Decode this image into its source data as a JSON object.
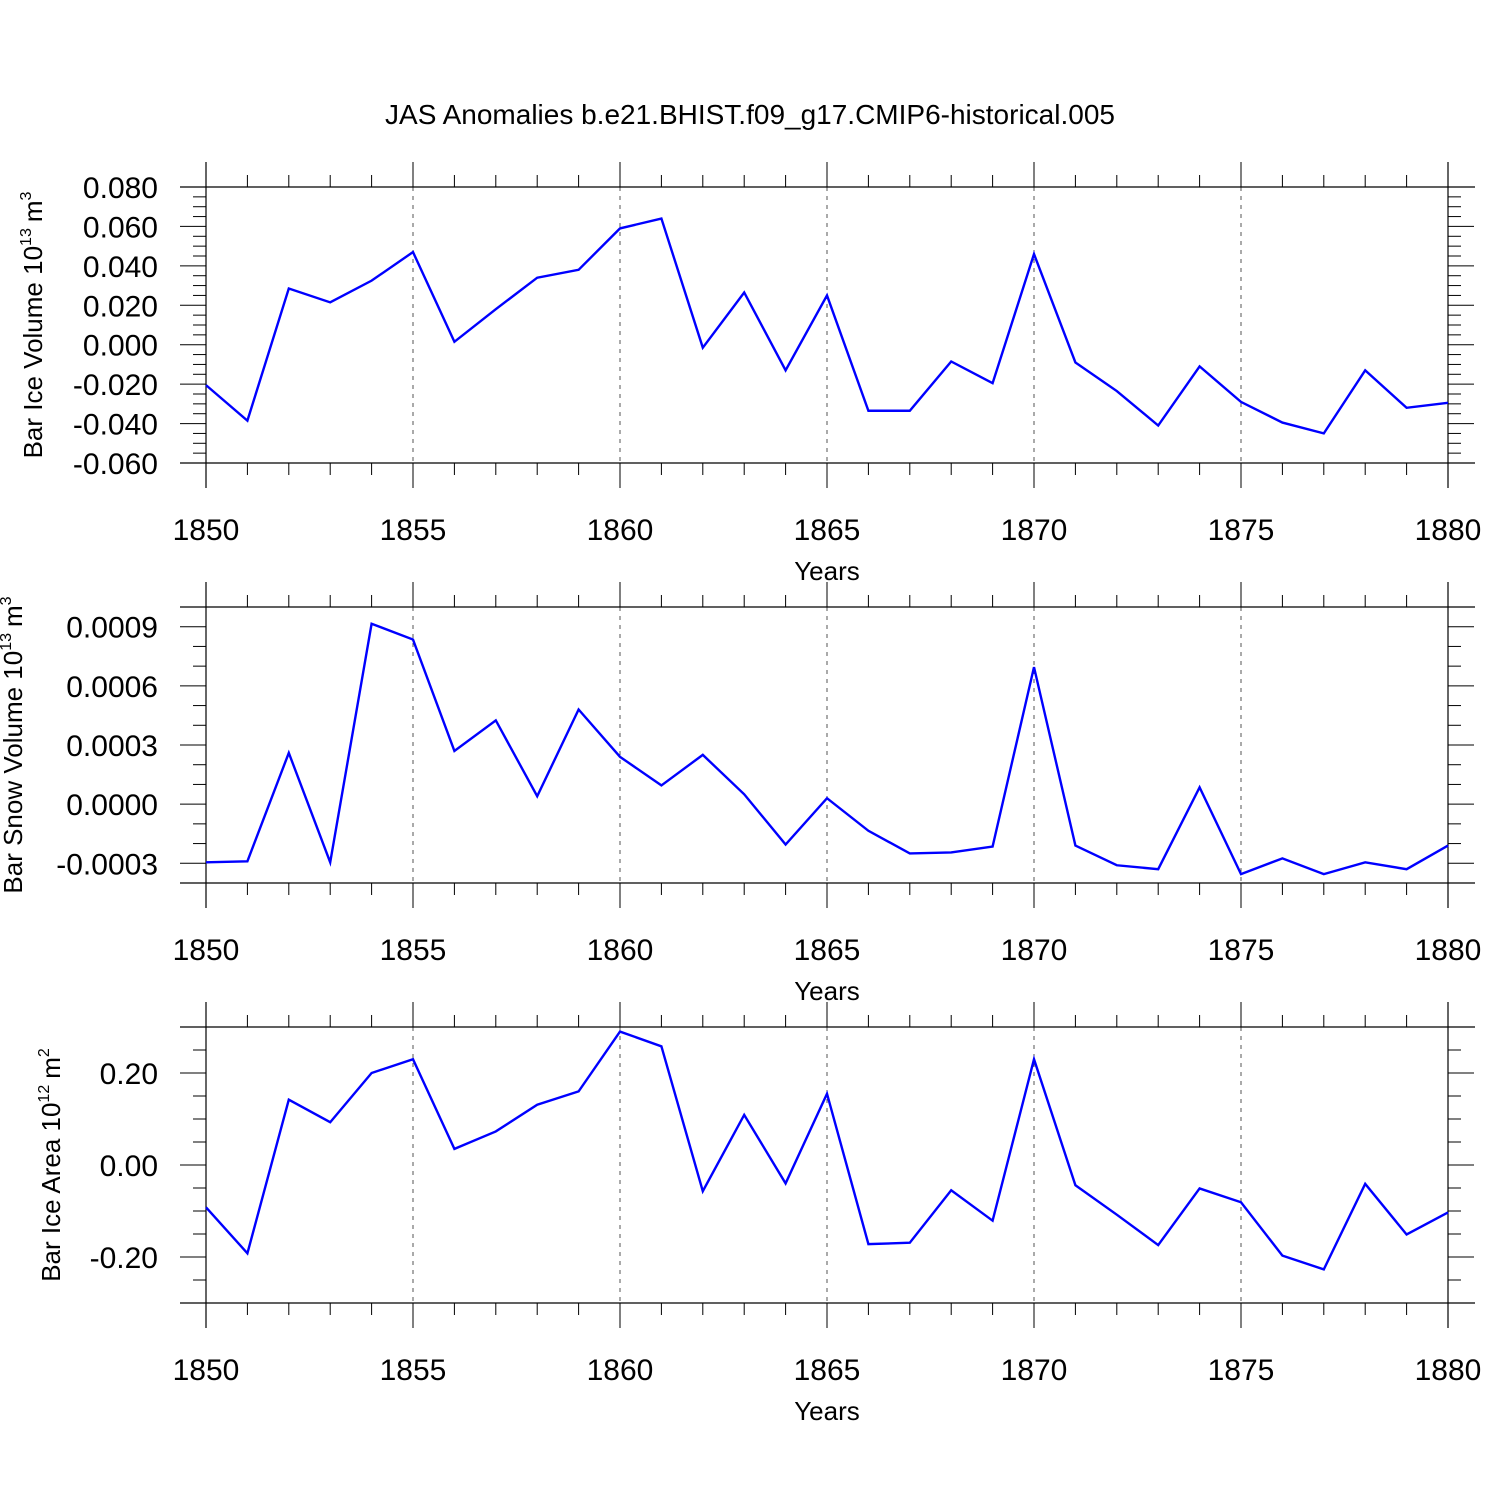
{
  "figure_title": "JAS Anomalies b.e21.BHIST.f09_g17.CMIP6-historical.005",
  "chart_data": [
    {
      "type": "line",
      "title": "JAS Anomalies b.e21.BHIST.f09_g17.CMIP6-historical.005",
      "ylabel": "Bar Ice Volume 10",
      "ylabel_exp": "13",
      "ylabel_unit": "m",
      "ylabel_unit_exp": "3",
      "xlabel": "Years",
      "xlim": [
        1850,
        1880
      ],
      "ylim": [
        -0.06,
        0.08
      ],
      "x_ticks": [
        1850,
        1855,
        1860,
        1865,
        1870,
        1875,
        1880
      ],
      "x_tick_labels": [
        "1850",
        "1855",
        "1860",
        "1865",
        "1870",
        "1875",
        "1880"
      ],
      "x_minor_step": 1,
      "y_ticks": [
        -0.06,
        -0.04,
        -0.02,
        0.0,
        0.02,
        0.04,
        0.06,
        0.08
      ],
      "y_tick_labels": [
        "-0.060",
        "-0.040",
        "-0.020",
        "0.000",
        "0.020",
        "0.040",
        "0.060",
        "0.080"
      ],
      "y_minor_step": 0.005,
      "grid": "vertical dashed at major x ticks",
      "line_color": "#0000ff",
      "x": [
        1850,
        1851,
        1852,
        1853,
        1854,
        1855,
        1856,
        1857,
        1858,
        1859,
        1860,
        1861,
        1862,
        1863,
        1864,
        1865,
        1866,
        1867,
        1868,
        1869,
        1870,
        1871,
        1872,
        1873,
        1874,
        1875,
        1876,
        1877,
        1878,
        1879,
        1880
      ],
      "y": [
        -0.0205,
        -0.0385,
        0.0285,
        0.0215,
        0.0325,
        0.047,
        0.0015,
        0.018,
        0.034,
        0.038,
        0.059,
        0.064,
        -0.0015,
        0.0265,
        -0.013,
        0.025,
        -0.0335,
        -0.0335,
        -0.0085,
        -0.0195,
        0.046,
        -0.009,
        -0.0235,
        -0.041,
        -0.011,
        -0.029,
        -0.0395,
        -0.045,
        -0.013,
        -0.032,
        -0.0295
      ]
    },
    {
      "type": "line",
      "ylabel": "Bar Snow Volume 10",
      "ylabel_exp": "13",
      "ylabel_unit": "m",
      "ylabel_unit_exp": "3",
      "xlabel": "Years",
      "xlim": [
        1850,
        1880
      ],
      "ylim": [
        -0.0004,
        0.001
      ],
      "x_ticks": [
        1850,
        1855,
        1860,
        1865,
        1870,
        1875,
        1880
      ],
      "x_tick_labels": [
        "1850",
        "1855",
        "1860",
        "1865",
        "1870",
        "1875",
        "1880"
      ],
      "x_minor_step": 1,
      "y_ticks": [
        -0.0003,
        0.0,
        0.0003,
        0.0006,
        0.0009
      ],
      "y_tick_labels": [
        "-0.0003",
        "0.0000",
        "0.0003",
        "0.0006",
        "0.0009"
      ],
      "y_minor_step": 0.0001,
      "grid": "vertical dashed at major x ticks",
      "line_color": "#0000ff",
      "x": [
        1850,
        1851,
        1852,
        1853,
        1854,
        1855,
        1856,
        1857,
        1858,
        1859,
        1860,
        1861,
        1862,
        1863,
        1864,
        1865,
        1866,
        1867,
        1868,
        1869,
        1870,
        1871,
        1872,
        1873,
        1874,
        1875,
        1876,
        1877,
        1878,
        1879,
        1880
      ],
      "y": [
        -0.000295,
        -0.00029,
        0.00026,
        -0.000295,
        0.000915,
        0.000835,
        0.00027,
        0.000425,
        4e-05,
        0.00048,
        0.00024,
        9.5e-05,
        0.00025,
        5e-05,
        -0.000205,
        3e-05,
        -0.000135,
        -0.00025,
        -0.000245,
        -0.000215,
        0.000695,
        -0.00021,
        -0.00031,
        -0.00033,
        8.5e-05,
        -0.000355,
        -0.000275,
        -0.000355,
        -0.000295,
        -0.00033,
        -0.00021
      ]
    },
    {
      "type": "line",
      "ylabel": "Bar Ice Area 10",
      "ylabel_exp": "12",
      "ylabel_unit": "m",
      "ylabel_unit_exp": "2",
      "xlabel": "Years",
      "xlim": [
        1850,
        1880
      ],
      "ylim": [
        -0.3,
        0.3
      ],
      "x_ticks": [
        1850,
        1855,
        1860,
        1865,
        1870,
        1875,
        1880
      ],
      "x_tick_labels": [
        "1850",
        "1855",
        "1860",
        "1865",
        "1870",
        "1875",
        "1880"
      ],
      "x_minor_step": 1,
      "y_ticks": [
        -0.2,
        0.0,
        0.2
      ],
      "y_tick_labels": [
        "-0.20",
        "0.00",
        "0.20"
      ],
      "y_minor_step": 0.05,
      "grid": "vertical dashed at major x ticks",
      "line_color": "#0000ff",
      "x": [
        1850,
        1851,
        1852,
        1853,
        1854,
        1855,
        1856,
        1857,
        1858,
        1859,
        1860,
        1861,
        1862,
        1863,
        1864,
        1865,
        1866,
        1867,
        1868,
        1869,
        1870,
        1871,
        1872,
        1873,
        1874,
        1875,
        1876,
        1877,
        1878,
        1879,
        1880
      ],
      "y": [
        -0.092,
        -0.192,
        0.142,
        0.093,
        0.2,
        0.23,
        0.035,
        0.073,
        0.131,
        0.16,
        0.29,
        0.258,
        -0.057,
        0.109,
        -0.04,
        0.155,
        -0.172,
        -0.169,
        -0.055,
        -0.121,
        0.23,
        -0.044,
        -0.108,
        -0.174,
        -0.051,
        -0.081,
        -0.197,
        -0.227,
        -0.041,
        -0.151,
        -0.103
      ]
    }
  ]
}
